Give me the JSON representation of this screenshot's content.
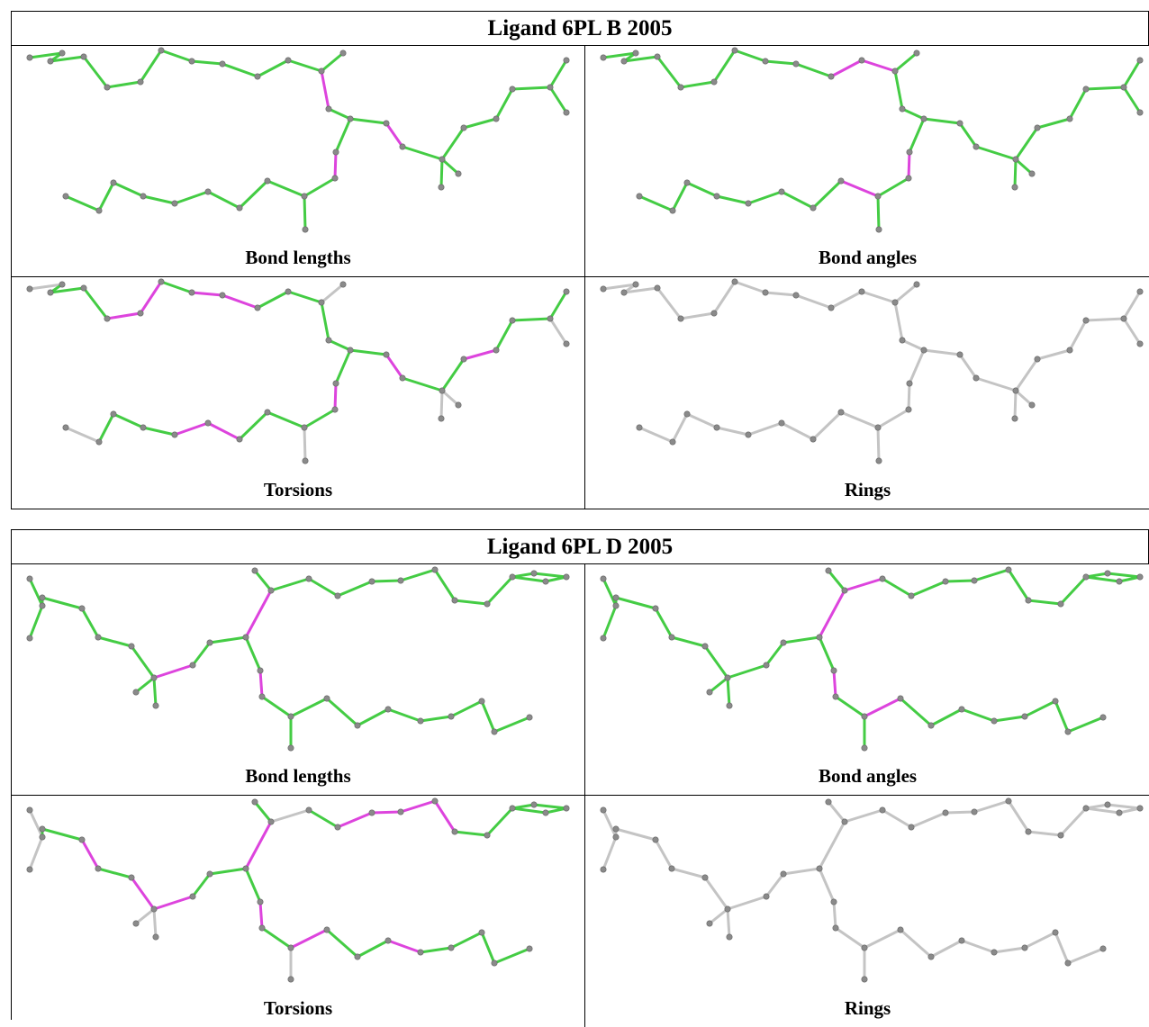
{
  "tables": [
    {
      "title": "Ligand 6PL B 2005",
      "panels": [
        {
          "caption": "Bond lengths"
        },
        {
          "caption": "Bond angles"
        },
        {
          "caption": "Torsions"
        },
        {
          "caption": "Rings"
        }
      ]
    },
    {
      "title": "Ligand 6PL D 2005",
      "panels": [
        {
          "caption": "Bond lengths"
        },
        {
          "caption": "Bond angles"
        },
        {
          "caption": "Torsions"
        },
        {
          "caption": "Rings"
        }
      ]
    }
  ]
}
